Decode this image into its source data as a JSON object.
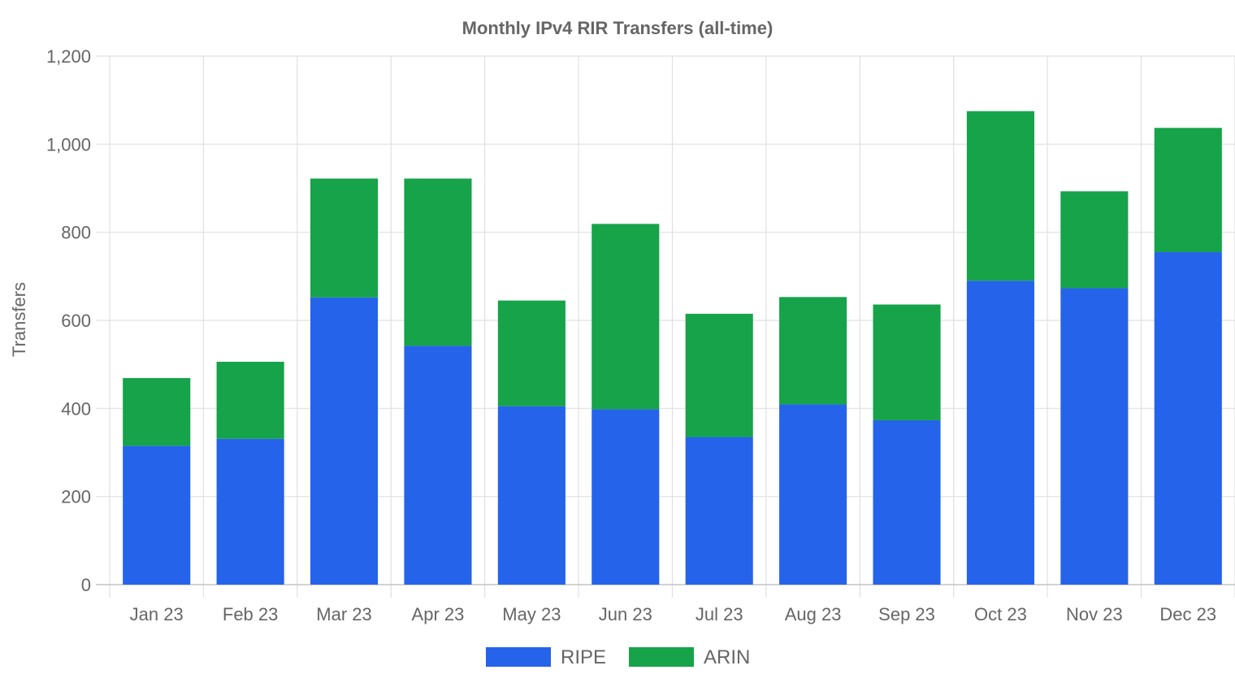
{
  "chart_data": {
    "type": "bar",
    "stacked": true,
    "title": "Monthly IPv4 RIR Transfers (all-time)",
    "xlabel": "",
    "ylabel": "Transfers",
    "categories": [
      "Jan 23",
      "Feb 23",
      "Mar 23",
      "Apr 23",
      "May 23",
      "Jun 23",
      "Jul 23",
      "Aug 23",
      "Sep 23",
      "Oct 23",
      "Nov 23",
      "Dec 23"
    ],
    "series": [
      {
        "name": "RIPE",
        "color": "#2563EB",
        "values": [
          315,
          331,
          652,
          542,
          405,
          398,
          335,
          409,
          373,
          690,
          673,
          755
        ]
      },
      {
        "name": "ARIN",
        "color": "#16A34A",
        "values": [
          154,
          175,
          270,
          380,
          240,
          421,
          280,
          244,
          263,
          385,
          220,
          282
        ]
      }
    ],
    "ylim": [
      0,
      1200
    ],
    "yticks": [
      0,
      200,
      400,
      600,
      800,
      1000,
      1200
    ],
    "ytick_labels": [
      "0",
      "200",
      "400",
      "600",
      "800",
      "1,000",
      "1,200"
    ],
    "grid": true,
    "legend_position": "bottom"
  }
}
